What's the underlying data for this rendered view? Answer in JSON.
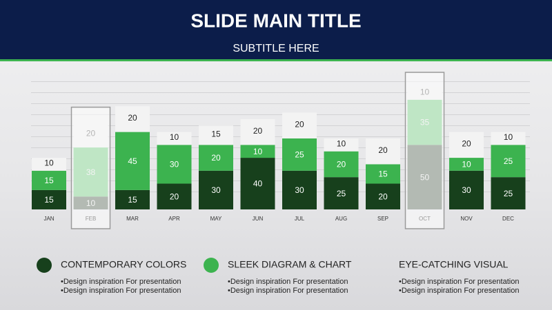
{
  "chart_data": {
    "type": "stacked-bar",
    "title": "SLIDE MAIN TITLE",
    "subtitle": "SUBTITLE HERE",
    "categories": [
      "JAN",
      "FEB",
      "MAR",
      "APR",
      "MAY",
      "JUN",
      "JUL",
      "AUG",
      "SEP",
      "OCT",
      "NOV",
      "DEC"
    ],
    "series": [
      {
        "name": "CONTEMPORARY COLORS",
        "color": "#17401c",
        "values": [
          15,
          10,
          15,
          20,
          30,
          40,
          30,
          25,
          20,
          50,
          30,
          25
        ]
      },
      {
        "color": "#3cb34f",
        "name": "SLEEK DIAGRAM & CHART",
        "values": [
          15,
          38,
          45,
          30,
          20,
          10,
          25,
          20,
          15,
          35,
          10,
          25
        ]
      },
      {
        "color": "#f3f3f3",
        "values": [
          10,
          20,
          20,
          10,
          15,
          20,
          20,
          10,
          20,
          10,
          20,
          10
        ]
      }
    ],
    "highlight": [
      1,
      9
    ],
    "captions": [
      {
        "bullets": [
          "•Design inspiration For presentation",
          "•Design inspiration For presentation"
        ]
      },
      {
        "bullets": [
          "•Design inspiration For presentation",
          "•Design inspiration For presentation"
        ]
      },
      {
        "title": "EYE-CATCHING VISUAL",
        "bullets": [
          "•Design inspiration For presentation",
          "•Design inspiration For presentation"
        ]
      }
    ]
  }
}
